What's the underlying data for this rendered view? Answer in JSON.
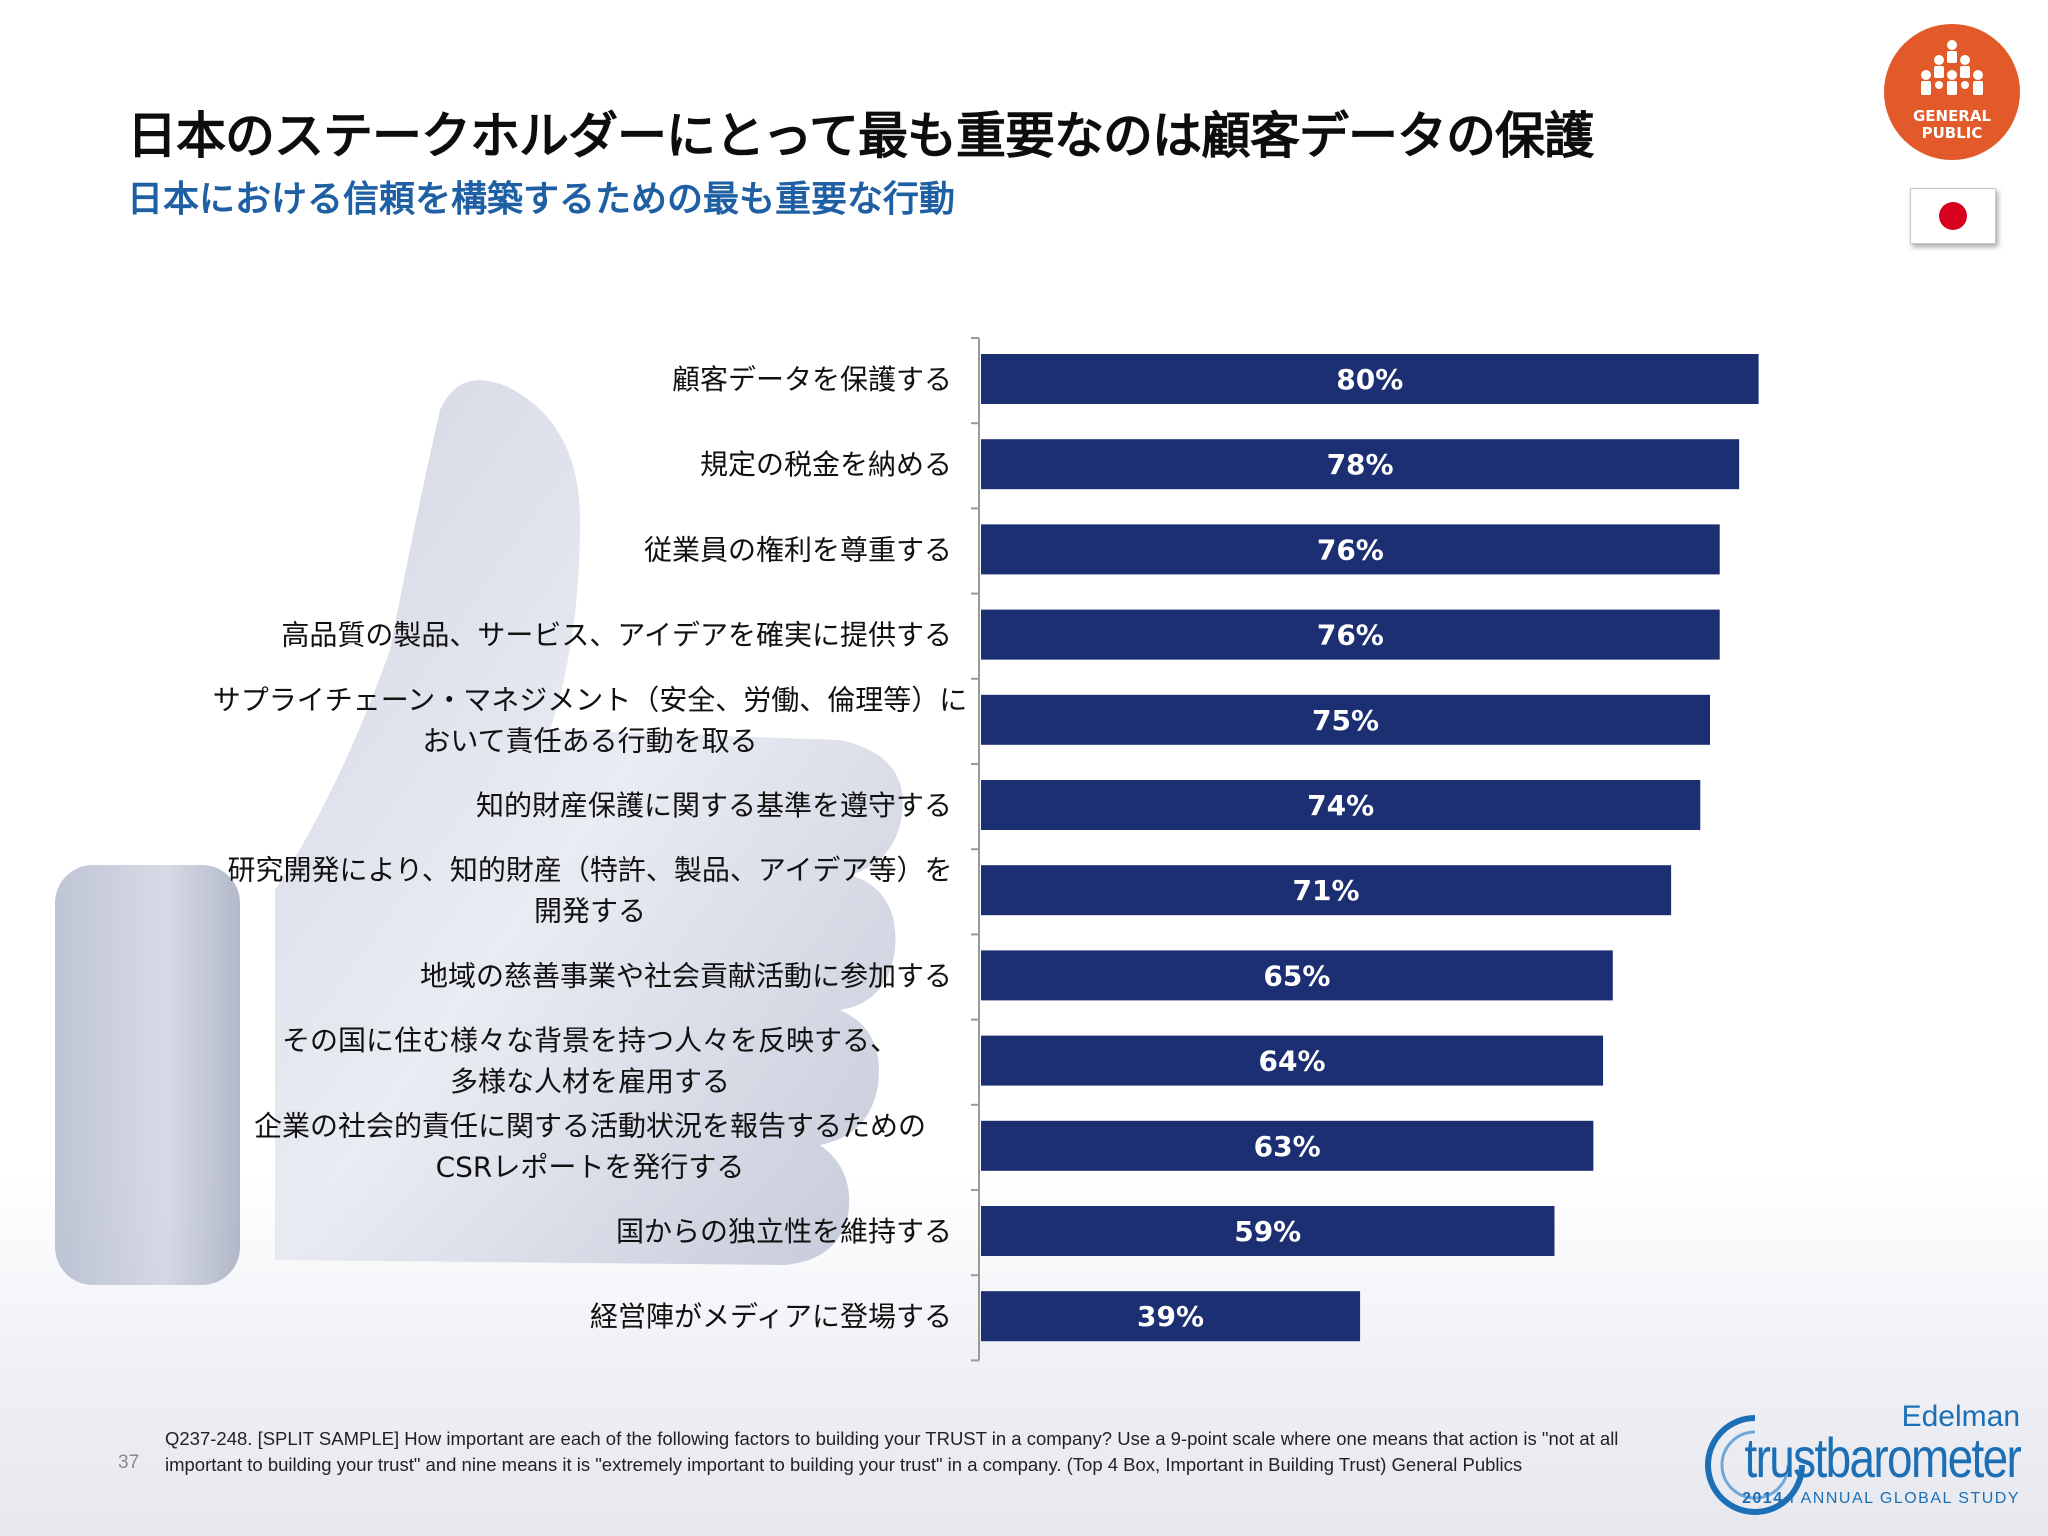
{
  "header": {
    "title": "日本のステークホルダーにとって最も重要なのは顧客データの保護",
    "subtitle": "日本における信頼を構築するための最も重要な行動"
  },
  "badge": {
    "line1": "GENERAL",
    "line2": "PUBLIC",
    "icon": "people-group-icon",
    "color": "#e2592a"
  },
  "flag": {
    "icon": "japan-flag-icon"
  },
  "chart_data": {
    "type": "bar",
    "orientation": "horizontal",
    "categories": [
      [
        "顧客データを保護する"
      ],
      [
        "規定の税金を納める"
      ],
      [
        "従業員の権利を尊重する"
      ],
      [
        "高品質の製品、サービス、アイデアを確実に提供する"
      ],
      [
        "サプライチェーン・マネジメント（安全、労働、倫理等）に",
        "おいて責任ある行動を取る"
      ],
      [
        "知的財産保護に関する基準を遵守する"
      ],
      [
        "研究開発により、知的財産（特許、製品、アイデア等）を",
        "開発する"
      ],
      [
        "地域の慈善事業や社会貢献活動に参加する"
      ],
      [
        "その国に住む様々な背景を持つ人々を反映する、",
        "多様な人材を雇用する"
      ],
      [
        "企業の社会的責任に関する活動状況を報告するための",
        "CSRレポートを発行する"
      ],
      [
        "国からの独立性を維持する"
      ],
      [
        "経営陣がメディアに登場する"
      ]
    ],
    "values": [
      80,
      78,
      76,
      76,
      75,
      74,
      71,
      65,
      64,
      63,
      59,
      39
    ],
    "value_labels": [
      "80%",
      "78%",
      "76%",
      "76%",
      "75%",
      "74%",
      "71%",
      "65%",
      "64%",
      "63%",
      "59%",
      "39%"
    ],
    "xlim": [
      0,
      100
    ],
    "bar_color": "#1c2f73",
    "label_color": "#ffffff",
    "grid": false,
    "legend": "none"
  },
  "footer": {
    "page_number": "37",
    "footnote": "Q237-248. [SPLIT SAMPLE] How important are each of the following factors to building your TRUST in a company? Use a 9-point scale where one means that action is \"not at all important to building your trust\" and nine means it is \"extremely important to building your trust\" in a company. (Top 4 Box, Important in Building Trust) General Publics"
  },
  "logo": {
    "brand": "Edelman",
    "product": "trustbarometer",
    "year": "2014",
    "separator": "I",
    "tagline": "ANNUAL GLOBAL STUDY"
  }
}
